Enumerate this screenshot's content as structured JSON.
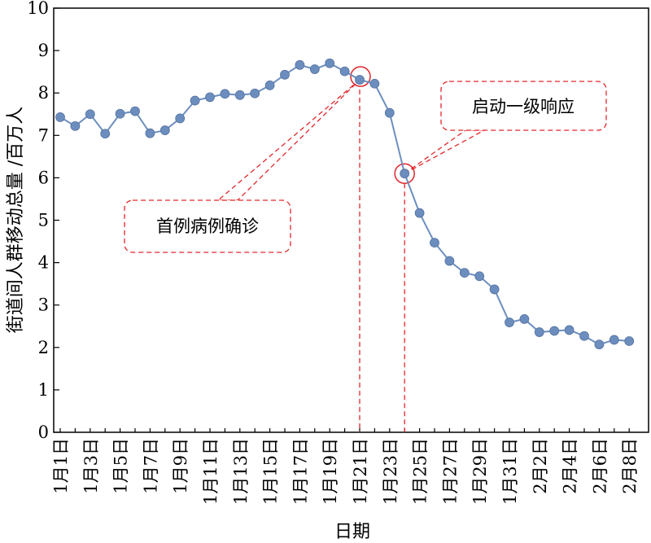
{
  "chart_data": {
    "type": "line",
    "xlabel": "日期",
    "ylabel": "街道间人群移动总量 /百万人",
    "ylim": [
      0,
      10
    ],
    "yticks": [
      0,
      1,
      2,
      3,
      4,
      5,
      6,
      7,
      8,
      9,
      10
    ],
    "x": [
      "1月1日",
      "1月2日",
      "1月3日",
      "1月4日",
      "1月5日",
      "1月6日",
      "1月7日",
      "1月8日",
      "1月9日",
      "1月10日",
      "1月11日",
      "1月12日",
      "1月13日",
      "1月14日",
      "1月15日",
      "1月16日",
      "1月17日",
      "1月18日",
      "1月19日",
      "1月20日",
      "1月21日",
      "1月22日",
      "1月23日",
      "1月24日",
      "1月25日",
      "1月26日",
      "1月27日",
      "1月28日",
      "1月29日",
      "1月30日",
      "1月31日",
      "2月1日",
      "2月2日",
      "2月3日",
      "2月4日",
      "2月5日",
      "2月6日",
      "2月7日",
      "2月8日"
    ],
    "xtick_labels": [
      "1月1日",
      "1月3日",
      "1月5日",
      "1月7日",
      "1月9日",
      "1月11日",
      "1月13日",
      "1月15日",
      "1月17日",
      "1月19日",
      "1月21日",
      "1月23日",
      "1月25日",
      "1月27日",
      "1月29日",
      "1月31日",
      "2月2日",
      "2月4日",
      "2月6日",
      "2月8日"
    ],
    "series": [
      {
        "values": [
          7.43,
          7.22,
          7.5,
          7.04,
          7.51,
          7.57,
          7.05,
          7.12,
          7.4,
          7.82,
          7.9,
          7.98,
          7.95,
          7.99,
          8.18,
          8.43,
          8.66,
          8.56,
          8.7,
          8.51,
          8.31,
          8.22,
          7.53,
          6.1,
          5.17,
          4.47,
          4.04,
          3.76,
          3.68,
          3.37,
          2.59,
          2.67,
          2.36,
          2.39,
          2.41,
          2.27,
          2.07,
          2.18,
          2.15
        ],
        "color": "#6c8ebf"
      }
    ],
    "annotations": [
      {
        "text": "首例病例确诊",
        "x": "1月21日",
        "y": 8.31
      },
      {
        "text": "启动一级响应",
        "x": "1月24日",
        "y": 6.1
      }
    ],
    "grid": false,
    "annotation_color": "#e0272b"
  }
}
